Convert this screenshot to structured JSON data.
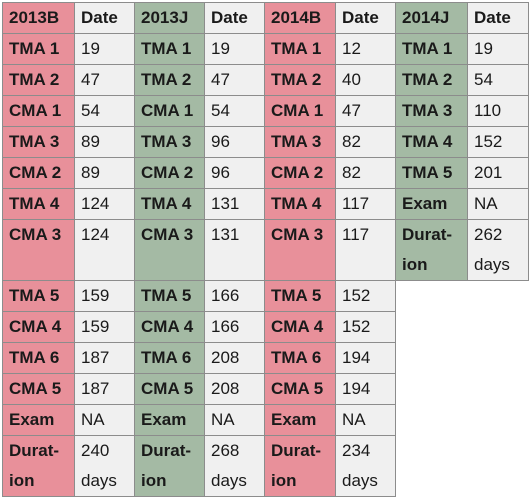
{
  "header": {
    "y2013B": "2013B",
    "y2013J": "2013J",
    "y2014B": "2014B",
    "y2014J": "2014J",
    "date": "Date"
  },
  "rows": [
    {
      "a": "TMA 1",
      "ad": "19",
      "b": "TMA 1",
      "bd": "19",
      "c": "TMA 1",
      "cd": "12",
      "d": "TMA 1",
      "dd": "19"
    },
    {
      "a": "TMA 2",
      "ad": "47",
      "b": "TMA 2",
      "bd": "47",
      "c": "TMA 2",
      "cd": "40",
      "d": "TMA 2",
      "dd": "54"
    },
    {
      "a": "CMA 1",
      "ad": "54",
      "b": "CMA 1",
      "bd": "54",
      "c": "CMA 1",
      "cd": "47",
      "d": "TMA 3",
      "dd": "110"
    },
    {
      "a": "TMA 3",
      "ad": "89",
      "b": "TMA 3",
      "bd": "96",
      "c": "TMA 3",
      "cd": "82",
      "d": "TMA 4",
      "dd": "152"
    },
    {
      "a": "CMA 2",
      "ad": "89",
      "b": "CMA 2",
      "bd": "96",
      "c": "CMA 2",
      "cd": "82",
      "d": "TMA 5",
      "dd": "201"
    },
    {
      "a": "TMA 4",
      "ad": "124",
      "b": "TMA 4",
      "bd": "131",
      "c": "TMA 4",
      "cd": "117",
      "d": "Exam",
      "dd": "NA"
    },
    {
      "a": "CMA 3",
      "ad": "124",
      "b": "CMA 3",
      "bd": "131",
      "c": "CMA 3",
      "cd": "117",
      "d": "Durat-ion",
      "dd": "262 days"
    },
    {
      "a": "TMA 5",
      "ad": "159",
      "b": "TMA 5",
      "bd": "166",
      "c": "TMA 5",
      "cd": "152"
    },
    {
      "a": "CMA 4",
      "ad": "159",
      "b": "CMA 4",
      "bd": "166",
      "c": "CMA 4",
      "cd": "152"
    },
    {
      "a": "TMA 6",
      "ad": "187",
      "b": "TMA 6",
      "bd": "208",
      "c": "TMA 6",
      "cd": "194"
    },
    {
      "a": "CMA 5",
      "ad": "187",
      "b": "CMA 5",
      "bd": "208",
      "c": "CMA 5",
      "cd": "194"
    },
    {
      "a": "Exam",
      "ad": "NA",
      "b": "Exam",
      "bd": "NA",
      "c": "Exam",
      "cd": "NA"
    },
    {
      "a": "Durat-ion",
      "ad": "240 days",
      "b": "Durat-ion",
      "bd": "268 days",
      "c": "Durat-ion",
      "cd": "234 days"
    }
  ],
  "colors": {
    "pink": "#e8909a",
    "green": "#a4baa4",
    "date_bg": "#f0f0f0",
    "border": "#8c8c8c"
  }
}
